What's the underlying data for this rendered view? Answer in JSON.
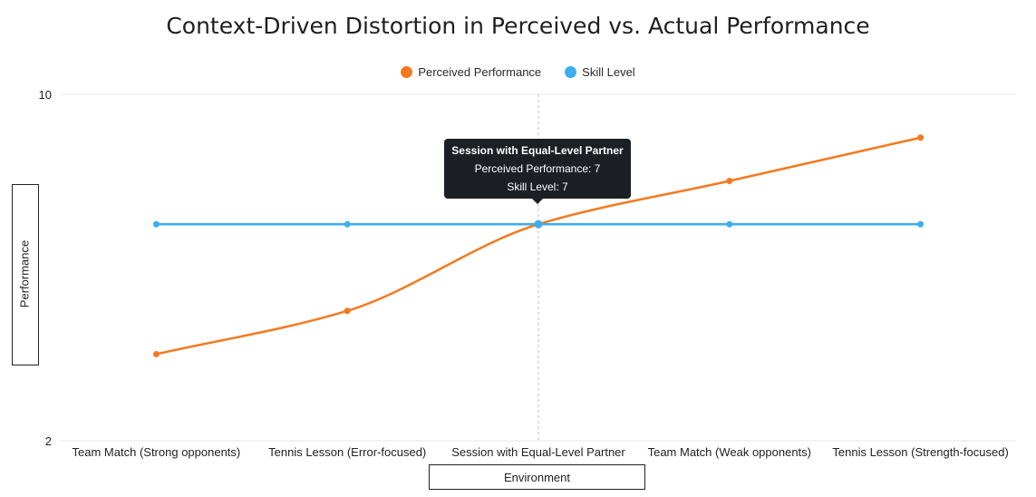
{
  "chart_data": {
    "type": "line",
    "title": "Context-Driven Distortion in Perceived vs. Actual Performance",
    "xlabel": "Environment",
    "ylabel": "Performance",
    "ylim": [
      2,
      10
    ],
    "y_ticks": [
      "2",
      "10"
    ],
    "categories": [
      "Team Match (Strong opponents)",
      "Tennis Lesson (Error-focused)",
      "Session with Equal-Level Partner",
      "Team Match (Weak opponents)",
      "Tennis Lesson (Strength-focused)"
    ],
    "series": [
      {
        "name": "Perceived Performance",
        "color": "#f47a20",
        "values": [
          4,
          5,
          7,
          8,
          9
        ]
      },
      {
        "name": "Skill Level",
        "color": "#3aaef0",
        "values": [
          7,
          7,
          7,
          7,
          7
        ]
      }
    ],
    "legend_position": "top-center",
    "tooltip": {
      "title": "Session with Equal-Level Partner",
      "lines": [
        "Perceived Performance: 7",
        "Skill Level: 7"
      ]
    }
  }
}
